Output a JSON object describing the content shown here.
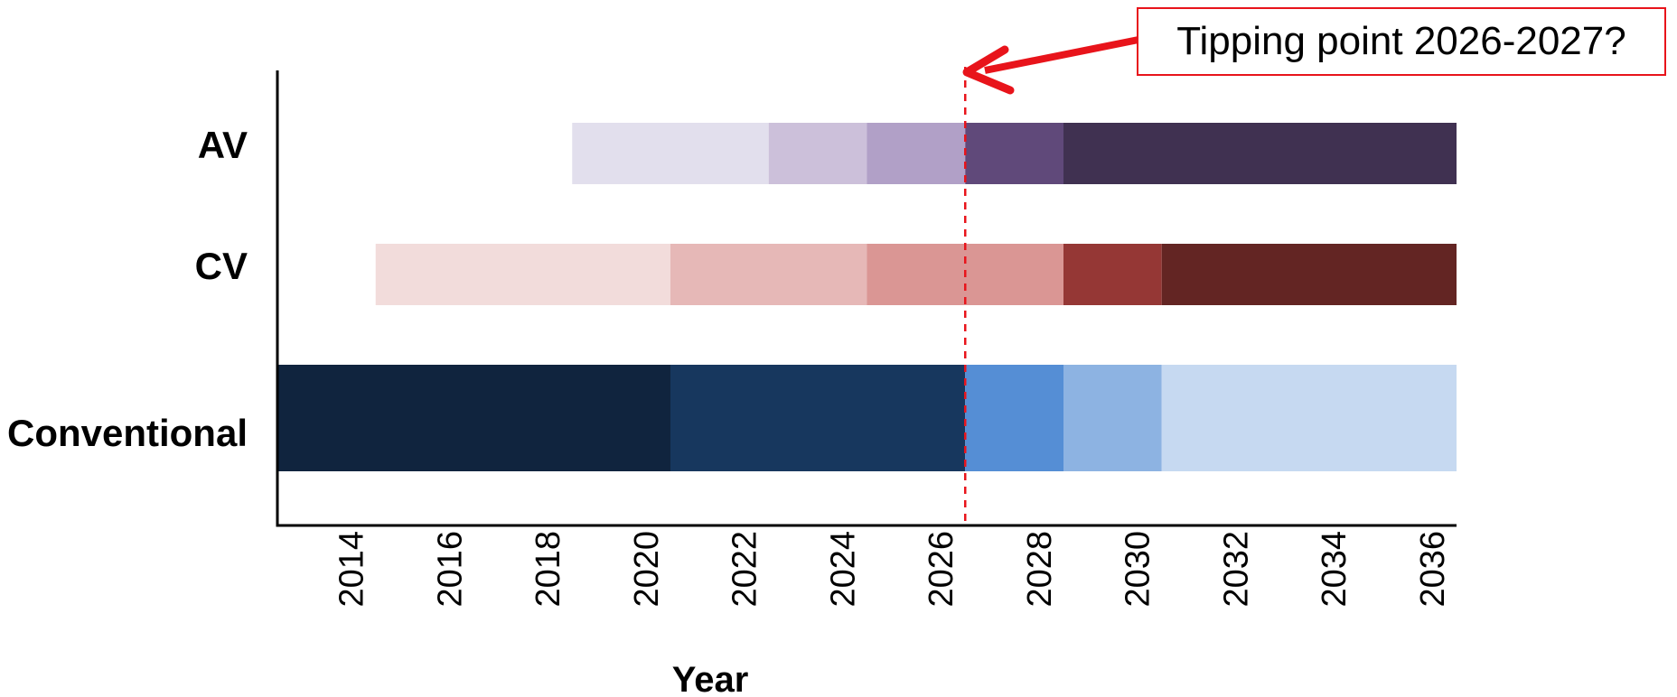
{
  "chart_data": {
    "type": "bar",
    "subtype": "stacked-horizontal-timeline",
    "title": "",
    "xlabel": "Year",
    "ylabel": "",
    "xlim": [
      2012.5,
      2036.5
    ],
    "x_ticks": [
      2014,
      2016,
      2018,
      2020,
      2022,
      2024,
      2026,
      2028,
      2030,
      2032,
      2034,
      2036
    ],
    "grid": false,
    "categories": [
      "AV",
      "CV",
      "Conventional"
    ],
    "series": [
      {
        "category": "AV",
        "segments": [
          {
            "start": 2018.5,
            "end": 2022.5,
            "color": "#e2dfed"
          },
          {
            "start": 2022.5,
            "end": 2024.5,
            "color": "#ccc0da"
          },
          {
            "start": 2024.5,
            "end": 2026.5,
            "color": "#b1a0c7"
          },
          {
            "start": 2026.5,
            "end": 2028.5,
            "color": "#60497a"
          },
          {
            "start": 2028.5,
            "end": 2036.5,
            "color": "#403151"
          }
        ]
      },
      {
        "category": "CV",
        "segments": [
          {
            "start": 2014.5,
            "end": 2020.5,
            "color": "#f2dcdb"
          },
          {
            "start": 2020.5,
            "end": 2024.5,
            "color": "#e6b8b7"
          },
          {
            "start": 2024.5,
            "end": 2028.5,
            "color": "#da9694"
          },
          {
            "start": 2028.5,
            "end": 2030.5,
            "color": "#953735"
          },
          {
            "start": 2030.5,
            "end": 2036.5,
            "color": "#632523"
          }
        ]
      },
      {
        "category": "Conventional",
        "segments": [
          {
            "start": 2012.5,
            "end": 2020.5,
            "color": "#10243e"
          },
          {
            "start": 2020.5,
            "end": 2026.5,
            "color": "#17375e"
          },
          {
            "start": 2026.5,
            "end": 2028.5,
            "color": "#558ed5"
          },
          {
            "start": 2028.5,
            "end": 2030.5,
            "color": "#8db3e2"
          },
          {
            "start": 2030.5,
            "end": 2036.5,
            "color": "#c6d9f1"
          }
        ]
      }
    ],
    "reference_line": {
      "x": 2026.5,
      "style": "dashed",
      "color": "#e8141b"
    },
    "annotation": {
      "text": "Tipping point 2026-2027?",
      "color": "#e8141b"
    }
  }
}
